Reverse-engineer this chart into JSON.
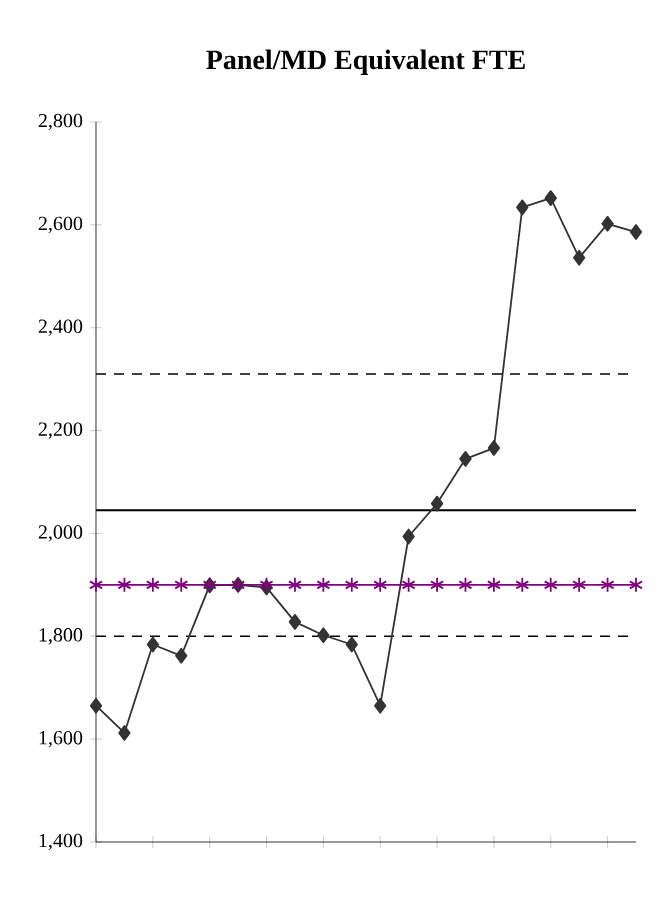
{
  "chart_data": {
    "type": "line",
    "title": "Panel/MD Equivalent FTE",
    "categories": [
      null,
      null,
      null,
      null,
      null,
      null,
      null,
      null,
      null,
      null,
      null,
      null,
      null,
      null,
      null,
      null,
      null,
      null,
      null,
      null
    ],
    "series": [
      {
        "color": "#333333",
        "marker": "diamond",
        "line_style": "solid",
        "values": [
          1665,
          1612,
          1784,
          1762,
          1899,
          1900,
          1895,
          1828,
          1802,
          1784,
          1665,
          1994,
          2058,
          2145,
          2166,
          2634,
          2652,
          2536,
          2602,
          2586
        ]
      },
      {
        "color": "#800080",
        "marker": "cross",
        "line_style": "solid",
        "values": [
          1900,
          1900,
          1900,
          1900,
          1900,
          1900,
          1900,
          1900,
          1900,
          1900,
          1900,
          1900,
          1900,
          1900,
          1900,
          1900,
          1900,
          1900,
          1900,
          1900
        ]
      }
    ],
    "ref_lines": [
      {
        "axis": "y",
        "value": 2310,
        "line_style": "dashed",
        "color": "#000000"
      },
      {
        "axis": "y",
        "value": 2045,
        "line_style": "solid",
        "color": "#000000"
      },
      {
        "axis": "y",
        "value": 1800,
        "line_style": "dashed",
        "color": "#000000"
      }
    ],
    "ylim": [
      1400,
      2800
    ],
    "yticks": [
      {
        "value": 1400,
        "label": "1,400"
      },
      {
        "value": 1600,
        "label": "1,600"
      },
      {
        "value": 1800,
        "label": "1,800"
      },
      {
        "value": 2000,
        "label": "2,000"
      },
      {
        "value": 2200,
        "label": "2,200"
      },
      {
        "value": 2400,
        "label": "2,400"
      },
      {
        "value": 2600,
        "label": "2,600"
      },
      {
        "value": 2800,
        "label": "2,800"
      }
    ],
    "tick_labels": "y",
    "grid": false
  }
}
